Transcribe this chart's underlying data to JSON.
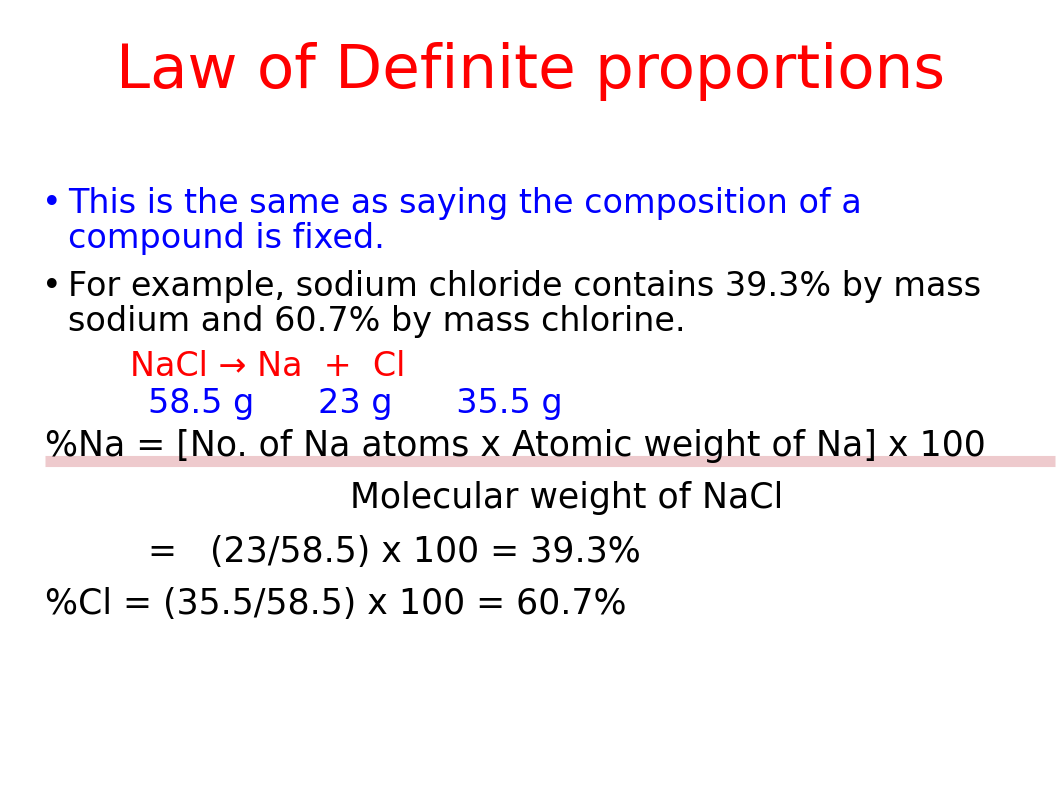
{
  "title": "Law of Definite proportions",
  "title_color": "#FF0000",
  "title_fontsize": 44,
  "background_color": "#FFFFFF",
  "bullet1_color": "#0000FF",
  "bullet1_text_line1": "This is the same as saying the composition of a",
  "bullet1_text_line2": "compound is fixed.",
  "bullet2_color": "#000000",
  "bullet2_text_line1": "For example, sodium chloride contains 39.3% by mass",
  "bullet2_text_line2": "sodium and 60.7% by mass chlorine.",
  "nacl_line": "NaCl → Na  +  Cl",
  "nacl_color": "#FF0000",
  "masses_line": "58.5 g      23 g      35.5 g",
  "masses_color": "#0000FF",
  "formula_num": "%Na = [No. of Na atoms x Atomic weight of Na] x 100",
  "formula_den": "Molecular weight of NaCl",
  "formula_color": "#000000",
  "calc1": "=   (23/58.5) x 100 = 39.3%",
  "calc2": "%Cl = (35.5/58.5) x 100 = 60.7%",
  "underline_color": "#E8B4B8",
  "bullet_fontsize": 24,
  "formula_fontsize": 25,
  "sub_fontsize": 24
}
